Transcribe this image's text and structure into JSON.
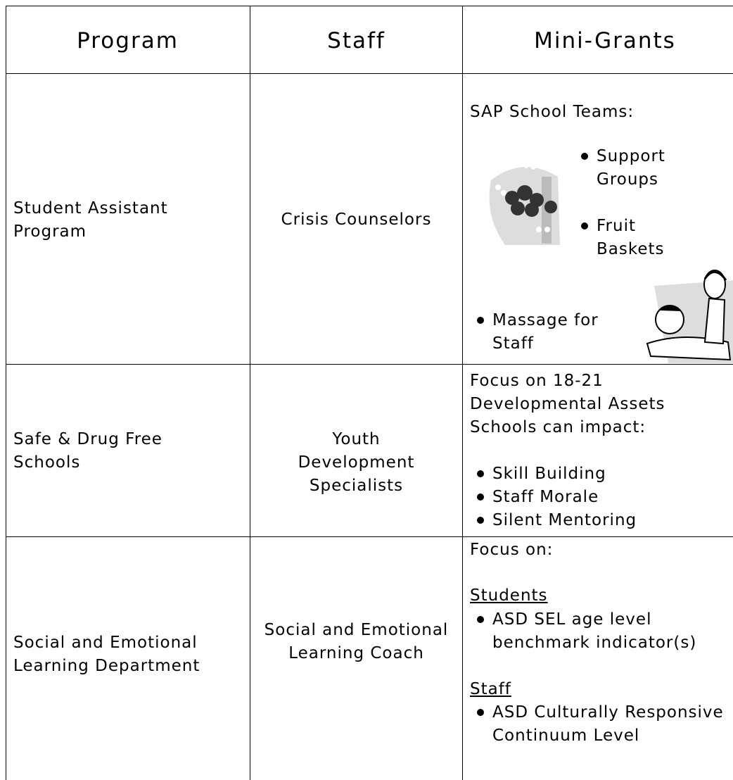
{
  "table": {
    "header": [
      "Program",
      "Staff",
      "Mini-Grants"
    ],
    "rows": [
      {
        "program": "Student Assistant Program",
        "staff": "Crisis Counselors",
        "mini_grants": {
          "intro": "SAP School Teams:",
          "bullets": [
            "Support Groups",
            "Fruit Baskets",
            "Massage for Staff"
          ]
        }
      },
      {
        "program": "Safe & Drug Free Schools",
        "staff": "Youth Development Specialists",
        "mini_grants": {
          "intro": "Focus on 18-21 Developmental Assets Schools can impact:",
          "bullets": [
            "Skill Building",
            "Staff Morale",
            "Silent Mentoring"
          ]
        }
      },
      {
        "program": "Social and Emotional Learning Department",
        "staff": "Social and Emotional Learning Coach",
        "mini_grants": {
          "intro": "Focus on:",
          "groups": [
            {
              "heading": "Students",
              "bullets": [
                "ASD SEL age level benchmark indicator(s)"
              ]
            },
            {
              "heading": "Staff",
              "bullets": [
                "ASD Culturally Responsive Continuum Level"
              ]
            }
          ]
        }
      }
    ]
  }
}
